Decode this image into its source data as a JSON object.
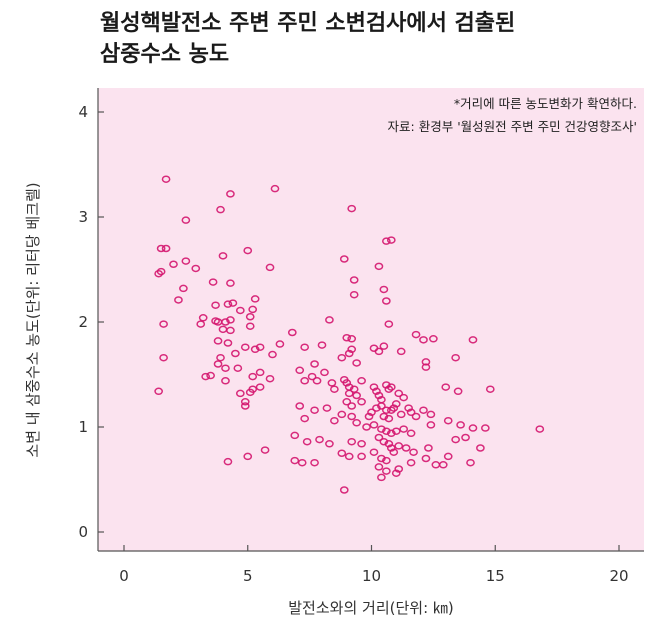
{
  "chart_data": {
    "type": "scatter",
    "title_lines": [
      "월성핵발전소 주변 주민 소변검사에서 검출된",
      "삼중수소 농도"
    ],
    "xlabel": "발전소와의 거리(단위: ㎞)",
    "ylabel": "소변 내 삼중수소 농도(단위: 리터당 베크렐)",
    "xlim": [
      -1.2,
      21
    ],
    "ylim": [
      -0.2,
      4.2
    ],
    "xticks": [
      0,
      5,
      10,
      15,
      20
    ],
    "yticks": [
      0,
      1,
      2,
      3,
      4
    ],
    "grid": false,
    "notes": [
      "*거리에 따른 농도변화가 확연하다.",
      "자료: 환경부 '월성원전 주변 주민 건강영향조사'"
    ],
    "colors": {
      "plot_bg": "#fbe3ef",
      "marker": "#d4156e",
      "axis": "#555555"
    },
    "points": [
      [
        1.7,
        3.36
      ],
      [
        4.3,
        3.22
      ],
      [
        6.1,
        3.27
      ],
      [
        3.9,
        3.07
      ],
      [
        9.2,
        3.08
      ],
      [
        2.5,
        2.97
      ],
      [
        1.5,
        2.7
      ],
      [
        1.7,
        2.7
      ],
      [
        4.0,
        2.63
      ],
      [
        5.0,
        2.68
      ],
      [
        2.0,
        2.55
      ],
      [
        2.5,
        2.58
      ],
      [
        2.9,
        2.51
      ],
      [
        1.5,
        2.48
      ],
      [
        1.4,
        2.46
      ],
      [
        5.9,
        2.52
      ],
      [
        8.9,
        2.6
      ],
      [
        9.3,
        2.4
      ],
      [
        10.3,
        2.53
      ],
      [
        10.6,
        2.77
      ],
      [
        10.8,
        2.78
      ],
      [
        2.4,
        2.32
      ],
      [
        3.6,
        2.38
      ],
      [
        2.2,
        2.21
      ],
      [
        4.3,
        2.37
      ],
      [
        9.3,
        2.26
      ],
      [
        10.5,
        2.31
      ],
      [
        3.7,
        2.16
      ],
      [
        4.2,
        2.17
      ],
      [
        4.4,
        2.18
      ],
      [
        5.3,
        2.22
      ],
      [
        5.2,
        2.12
      ],
      [
        4.7,
        2.11
      ],
      [
        10.6,
        2.2
      ],
      [
        1.6,
        1.98
      ],
      [
        3.2,
        2.04
      ],
      [
        3.7,
        2.01
      ],
      [
        3.8,
        2.0
      ],
      [
        4.1,
        2.0
      ],
      [
        4.3,
        2.02
      ],
      [
        3.1,
        1.98
      ],
      [
        4.0,
        1.93
      ],
      [
        4.3,
        1.92
      ],
      [
        5.1,
        2.05
      ],
      [
        5.1,
        1.96
      ],
      [
        8.3,
        2.02
      ],
      [
        10.7,
        1.98
      ],
      [
        3.8,
        1.82
      ],
      [
        4.2,
        1.8
      ],
      [
        6.8,
        1.9
      ],
      [
        4.5,
        1.7
      ],
      [
        3.9,
        1.66
      ],
      [
        4.9,
        1.76
      ],
      [
        5.3,
        1.74
      ],
      [
        5.5,
        1.76
      ],
      [
        1.6,
        1.66
      ],
      [
        3.8,
        1.6
      ],
      [
        4.1,
        1.56
      ],
      [
        4.6,
        1.56
      ],
      [
        6.0,
        1.69
      ],
      [
        6.3,
        1.79
      ],
      [
        7.3,
        1.76
      ],
      [
        8.0,
        1.78
      ],
      [
        7.7,
        1.6
      ],
      [
        9.0,
        1.85
      ],
      [
        9.2,
        1.84
      ],
      [
        9.2,
        1.74
      ],
      [
        9.1,
        1.7
      ],
      [
        8.8,
        1.66
      ],
      [
        9.4,
        1.61
      ],
      [
        10.1,
        1.75
      ],
      [
        10.3,
        1.72
      ],
      [
        10.5,
        1.77
      ],
      [
        11.2,
        1.72
      ],
      [
        11.8,
        1.88
      ],
      [
        12.1,
        1.83
      ],
      [
        12.5,
        1.84
      ],
      [
        14.1,
        1.83
      ],
      [
        13.4,
        1.66
      ],
      [
        12.2,
        1.62
      ],
      [
        12.2,
        1.57
      ],
      [
        3.5,
        1.49
      ],
      [
        3.3,
        1.48
      ],
      [
        4.1,
        1.44
      ],
      [
        5.2,
        1.48
      ],
      [
        5.5,
        1.52
      ],
      [
        5.9,
        1.46
      ],
      [
        5.2,
        1.36
      ],
      [
        5.1,
        1.33
      ],
      [
        5.5,
        1.38
      ],
      [
        4.7,
        1.32
      ],
      [
        4.9,
        1.24
      ],
      [
        4.9,
        1.2
      ],
      [
        1.4,
        1.34
      ],
      [
        7.1,
        1.54
      ],
      [
        7.3,
        1.44
      ],
      [
        7.6,
        1.48
      ],
      [
        7.8,
        1.44
      ],
      [
        8.1,
        1.52
      ],
      [
        8.4,
        1.42
      ],
      [
        8.5,
        1.36
      ],
      [
        8.9,
        1.45
      ],
      [
        9.0,
        1.42
      ],
      [
        9.1,
        1.38
      ],
      [
        9.1,
        1.32
      ],
      [
        9.3,
        1.36
      ],
      [
        9.4,
        1.3
      ],
      [
        9.6,
        1.44
      ],
      [
        9.0,
        1.24
      ],
      [
        9.2,
        1.2
      ],
      [
        9.6,
        1.24
      ],
      [
        10.1,
        1.38
      ],
      [
        10.2,
        1.34
      ],
      [
        10.3,
        1.3
      ],
      [
        10.4,
        1.26
      ],
      [
        10.6,
        1.4
      ],
      [
        10.7,
        1.36
      ],
      [
        10.8,
        1.38
      ],
      [
        11.1,
        1.32
      ],
      [
        11.3,
        1.28
      ],
      [
        11.0,
        1.22
      ],
      [
        10.9,
        1.18
      ],
      [
        10.8,
        1.16
      ],
      [
        10.6,
        1.16
      ],
      [
        10.4,
        1.2
      ],
      [
        10.2,
        1.18
      ],
      [
        10.0,
        1.14
      ],
      [
        9.9,
        1.1
      ],
      [
        10.5,
        1.1
      ],
      [
        10.7,
        1.08
      ],
      [
        11.2,
        1.12
      ],
      [
        11.5,
        1.18
      ],
      [
        11.6,
        1.14
      ],
      [
        11.8,
        1.1
      ],
      [
        12.1,
        1.16
      ],
      [
        12.4,
        1.12
      ],
      [
        13.0,
        1.38
      ],
      [
        13.5,
        1.34
      ],
      [
        14.8,
        1.36
      ],
      [
        7.1,
        1.2
      ],
      [
        7.7,
        1.16
      ],
      [
        8.2,
        1.18
      ],
      [
        7.3,
        1.08
      ],
      [
        8.5,
        1.06
      ],
      [
        8.8,
        1.12
      ],
      [
        9.2,
        1.1
      ],
      [
        9.4,
        1.04
      ],
      [
        9.8,
        1.0
      ],
      [
        10.1,
        1.02
      ],
      [
        10.4,
        0.98
      ],
      [
        10.6,
        0.96
      ],
      [
        10.8,
        0.94
      ],
      [
        11.0,
        0.96
      ],
      [
        11.3,
        0.98
      ],
      [
        11.6,
        0.94
      ],
      [
        12.4,
        1.02
      ],
      [
        13.1,
        1.06
      ],
      [
        13.6,
        1.02
      ],
      [
        14.1,
        0.99
      ],
      [
        14.6,
        0.99
      ],
      [
        16.8,
        0.98
      ],
      [
        6.9,
        0.92
      ],
      [
        7.4,
        0.86
      ],
      [
        7.9,
        0.88
      ],
      [
        8.3,
        0.84
      ],
      [
        9.2,
        0.86
      ],
      [
        9.6,
        0.84
      ],
      [
        10.3,
        0.9
      ],
      [
        10.5,
        0.86
      ],
      [
        10.7,
        0.84
      ],
      [
        10.8,
        0.8
      ],
      [
        10.9,
        0.76
      ],
      [
        11.1,
        0.82
      ],
      [
        11.4,
        0.8
      ],
      [
        11.7,
        0.76
      ],
      [
        12.3,
        0.8
      ],
      [
        13.4,
        0.88
      ],
      [
        13.8,
        0.9
      ],
      [
        14.4,
        0.8
      ],
      [
        5.0,
        0.72
      ],
      [
        5.7,
        0.78
      ],
      [
        4.2,
        0.67
      ],
      [
        6.9,
        0.68
      ],
      [
        7.2,
        0.66
      ],
      [
        7.7,
        0.66
      ],
      [
        8.8,
        0.75
      ],
      [
        9.1,
        0.72
      ],
      [
        9.6,
        0.72
      ],
      [
        10.1,
        0.76
      ],
      [
        10.4,
        0.7
      ],
      [
        10.6,
        0.68
      ],
      [
        10.3,
        0.62
      ],
      [
        10.6,
        0.58
      ],
      [
        11.1,
        0.6
      ],
      [
        11.0,
        0.56
      ],
      [
        10.4,
        0.52
      ],
      [
        11.6,
        0.66
      ],
      [
        12.2,
        0.7
      ],
      [
        12.9,
        0.64
      ],
      [
        12.6,
        0.64
      ],
      [
        13.1,
        0.72
      ],
      [
        14.0,
        0.66
      ],
      [
        8.9,
        0.4
      ]
    ]
  }
}
